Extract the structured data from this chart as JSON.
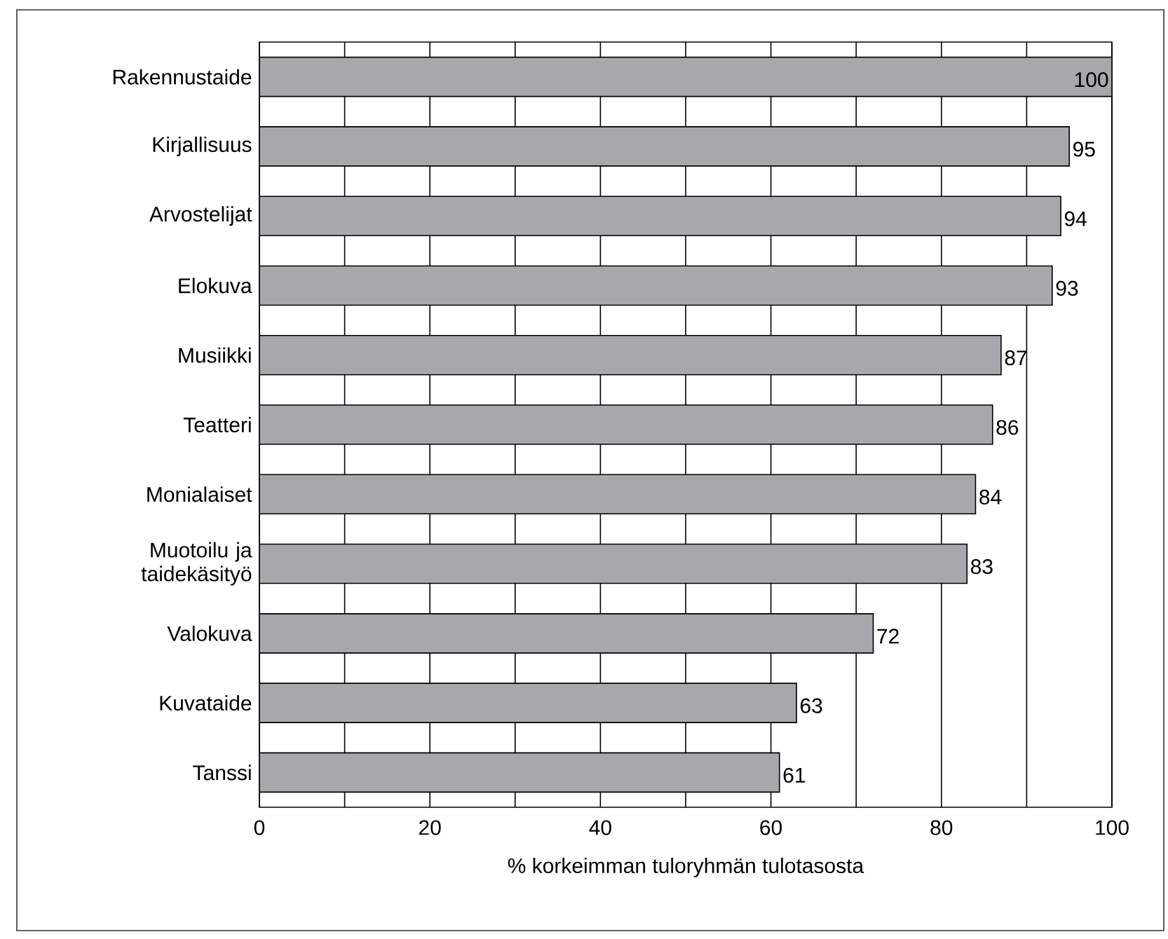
{
  "chart_data": {
    "type": "bar",
    "orientation": "horizontal",
    "xlabel": "% korkeimman tuloryhmän tulotasosta",
    "categories": [
      "Rakennustaide",
      "Kirjallisuus",
      "Arvostelijat",
      "Elokuva",
      "Musiikki",
      "Teatteri",
      "Monialaiset",
      "Muotoilu ja taidekäsityö",
      "Valokuva",
      "Kuvataide",
      "Tanssi"
    ],
    "values": [
      100,
      95,
      94,
      93,
      87,
      86,
      84,
      83,
      72,
      63,
      61
    ],
    "color": "#a7a8ab",
    "data_labels": true,
    "grid": "x",
    "xlim": [
      0,
      100
    ],
    "xticks": [
      0,
      {
        "value": 10,
        "label": null
      },
      20,
      {
        "value": 30,
        "label": null
      },
      40,
      {
        "value": 50,
        "label": null
      },
      60,
      {
        "value": 70,
        "label": null
      },
      80,
      {
        "value": 90,
        "label": null
      },
      100
    ]
  }
}
